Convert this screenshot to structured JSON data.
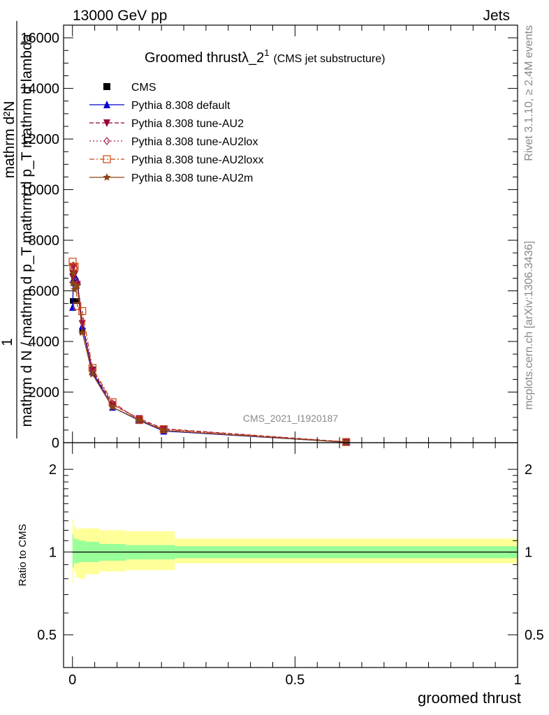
{
  "header": {
    "left": "13000 GeV pp",
    "right": "Jets"
  },
  "side_labels": {
    "rivet": "Rivet 3.1.10, ≥ 2.4M events",
    "mcplots": "mcplots.cern.ch [arXiv:1306.3436]"
  },
  "chart_data": [
    {
      "type": "line",
      "title": "Groomed thrustλ_2",
      "title_sup": "1",
      "subtitle": "(CMS jet substructure)",
      "watermark": "CMS_2021_I1920187",
      "ylabel_upper": "1",
      "ylabel_numerator": "mathrm d²N",
      "ylabel_denominator": "mathrm d N / mathrm d p_T mathrm d p_T mathrm d lambda",
      "xlabel": "groomed thrust",
      "xlim": [
        -0.02,
        1.0
      ],
      "ylim": [
        0,
        16500
      ],
      "yticks": [
        0,
        2000,
        4000,
        6000,
        8000,
        10000,
        12000,
        14000,
        16000
      ],
      "legend_position": "top-left",
      "series": [
        {
          "name": "CMS",
          "color": "#000000",
          "marker": "square",
          "x": [
            0.0005,
            0.002,
            0.005,
            0.011,
            0.022,
            0.045,
            0.09,
            0.15,
            0.205,
            0.615
          ],
          "y": [
            5600,
            6700,
            6300,
            5600,
            4400,
            2900,
            1500,
            900,
            520,
            25
          ]
        },
        {
          "name": "Pythia 8.308 default",
          "color": "#0000cc",
          "marker": "triangle-up",
          "line": "solid",
          "x": [
            0.0005,
            0.002,
            0.005,
            0.011,
            0.022,
            0.045,
            0.09,
            0.15,
            0.205,
            0.615
          ],
          "y": [
            5350,
            6450,
            6600,
            6400,
            4600,
            2800,
            1400,
            880,
            460,
            20
          ]
        },
        {
          "name": "Pythia 8.308 tune-AU2",
          "color": "#990033",
          "marker": "triangle-down",
          "line": "dashed",
          "x": [
            0.0005,
            0.002,
            0.005,
            0.011,
            0.022,
            0.045,
            0.09,
            0.15,
            0.205,
            0.615
          ],
          "y": [
            6550,
            6950,
            6650,
            6250,
            4700,
            2850,
            1500,
            950,
            550,
            30
          ]
        },
        {
          "name": "Pythia 8.308 tune-AU2lox",
          "color": "#aa2255",
          "marker": "diamond-open",
          "line": "dotted",
          "x": [
            0.0005,
            0.002,
            0.005,
            0.011,
            0.022,
            0.045,
            0.09,
            0.15,
            0.205,
            0.615
          ],
          "y": [
            6800,
            7000,
            6900,
            6300,
            4800,
            2900,
            1550,
            900,
            520,
            28
          ]
        },
        {
          "name": "Pythia 8.308 tune-AU2loxx",
          "color": "#cc4411",
          "marker": "square-open",
          "line": "dashdot",
          "x": [
            0.0005,
            0.002,
            0.005,
            0.011,
            0.022,
            0.045,
            0.09,
            0.15,
            0.205,
            0.615
          ],
          "y": [
            7150,
            6950,
            6950,
            5400,
            5200,
            2950,
            1600,
            900,
            530,
            25
          ]
        },
        {
          "name": "Pythia 8.308 tune-AU2m",
          "color": "#8b4513",
          "marker": "star",
          "line": "solid",
          "x": [
            0.0005,
            0.002,
            0.005,
            0.011,
            0.022,
            0.045,
            0.09,
            0.15,
            0.205,
            0.615
          ],
          "y": [
            6300,
            6700,
            6050,
            6200,
            4350,
            2700,
            1400,
            900,
            480,
            20
          ]
        }
      ]
    },
    {
      "type": "area",
      "ylabel": "Ratio to CMS",
      "xlabel": "groomed thrust",
      "xlim": [
        -0.02,
        1.0
      ],
      "ylim": [
        0.38,
        2.5
      ],
      "yscale": "log",
      "yticks": [
        0.5,
        1,
        2
      ],
      "xticks": [
        0,
        0.5,
        1
      ],
      "reference_line": 1,
      "bands": {
        "bin_edges": [
          0,
          0.003,
          0.008,
          0.015,
          0.03,
          0.06,
          0.12,
          0.18,
          0.23,
          1.0
        ],
        "stat_band": {
          "color": "#99ff99",
          "low": [
            0.88,
            0.91,
            0.91,
            0.92,
            0.92,
            0.93,
            0.94,
            0.94,
            0.95
          ],
          "high": [
            1.16,
            1.12,
            1.11,
            1.1,
            1.09,
            1.07,
            1.06,
            1.06,
            1.05
          ]
        },
        "total_band": {
          "color": "#ffff99",
          "low": [
            0.77,
            0.85,
            0.81,
            0.8,
            0.83,
            0.85,
            0.86,
            0.86,
            0.91
          ],
          "high": [
            1.32,
            1.24,
            1.21,
            1.22,
            1.22,
            1.2,
            1.19,
            1.19,
            1.12
          ]
        }
      }
    }
  ]
}
